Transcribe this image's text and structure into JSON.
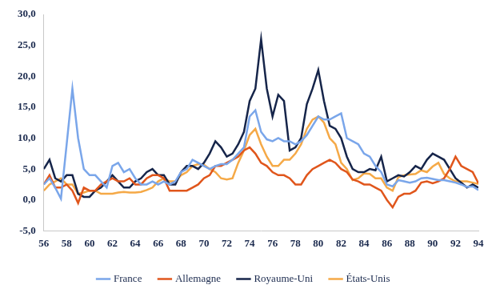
{
  "chart_data": {
    "type": "line",
    "x": [
      56,
      56.5,
      57,
      57.5,
      58,
      58.5,
      59,
      59.5,
      60,
      60.5,
      61,
      61.5,
      62,
      62.5,
      63,
      63.5,
      64,
      64.5,
      65,
      65.5,
      66,
      66.5,
      67,
      67.5,
      68,
      68.5,
      69,
      69.5,
      70,
      70.5,
      71,
      71.5,
      72,
      72.5,
      73,
      73.5,
      74,
      74.5,
      75,
      75.5,
      76,
      76.5,
      77,
      77.5,
      78,
      78.5,
      79,
      79.5,
      80,
      80.5,
      81,
      81.5,
      82,
      82.5,
      83,
      83.5,
      84,
      84.5,
      85,
      85.5,
      86,
      86.5,
      87,
      87.5,
      88,
      88.5,
      89,
      89.5,
      90,
      90.5,
      91,
      91.5,
      92,
      92.5,
      93,
      93.5,
      94
    ],
    "series": [
      {
        "name": "France",
        "color": "#7aa6ea",
        "values": [
          2.5,
          3.5,
          2,
          0.2,
          9,
          18,
          10,
          5,
          4,
          4,
          3,
          2,
          5.5,
          6,
          4.5,
          5,
          3.5,
          2.5,
          2.5,
          3,
          2.5,
          3,
          2.5,
          3,
          4.5,
          5,
          6.5,
          6,
          5.5,
          5,
          5.5,
          5.8,
          5.8,
          6.5,
          7.5,
          8.5,
          13.5,
          14.5,
          11,
          9.8,
          9.5,
          10,
          9.5,
          9.5,
          9,
          9.5,
          10.5,
          12,
          13.5,
          13,
          13,
          13.5,
          14,
          10,
          9.5,
          9,
          7.5,
          7,
          5.5,
          4.5,
          2.5,
          2.2,
          3.2,
          3,
          2.8,
          3,
          3.5,
          3.6,
          3.4,
          3.2,
          3.2,
          3,
          2.8,
          2.5,
          2.1,
          2.2,
          1.6
        ]
      },
      {
        "name": "Allemagne",
        "color": "#e0561c",
        "values": [
          2.5,
          4,
          2,
          2,
          2.5,
          1.5,
          -0.5,
          2,
          1.5,
          1.5,
          2.5,
          3,
          3.5,
          3,
          3,
          3.5,
          2.5,
          2.5,
          3.5,
          4,
          4,
          3.5,
          1.5,
          1.5,
          1.5,
          1.5,
          2,
          2.5,
          3.5,
          4,
          5.5,
          5.5,
          6,
          6.5,
          7,
          8,
          8.5,
          7.5,
          6,
          5.5,
          4.5,
          4,
          4,
          3.5,
          2.5,
          2.5,
          4,
          5,
          5.5,
          6,
          6.5,
          6,
          5,
          4.5,
          3.3,
          3,
          2.5,
          2.5,
          2,
          1.5,
          0,
          -1.2,
          0.5,
          1,
          1,
          1.5,
          2.8,
          3,
          2.7,
          3,
          3.5,
          5,
          7,
          5.5,
          5,
          4.5,
          2.7
        ]
      },
      {
        "name": "Royaume-Uni",
        "color": "#16254a",
        "values": [
          5,
          6.5,
          3.5,
          3,
          4,
          4,
          1,
          0.5,
          0.5,
          1.5,
          2,
          3,
          4,
          3,
          2,
          2,
          3,
          3.5,
          4.5,
          5,
          4,
          4,
          2.5,
          2.5,
          4.5,
          5.5,
          5.5,
          5,
          6,
          7.5,
          9.5,
          8.5,
          7,
          7.5,
          9,
          11,
          16,
          18,
          26,
          18,
          13.5,
          17,
          16,
          8,
          8.5,
          10,
          15.5,
          18,
          21,
          16,
          12,
          11.5,
          10,
          7,
          5,
          4.5,
          4.5,
          5,
          4.8,
          7,
          3,
          3.5,
          4,
          3.8,
          4.5,
          5.5,
          5,
          6.5,
          7.5,
          7,
          6.5,
          5,
          3.5,
          2.8,
          2,
          2.5,
          2
        ]
      },
      {
        "name": "États-Unis",
        "color": "#f5a947",
        "values": [
          1.5,
          2.5,
          3,
          3.5,
          2.5,
          2.5,
          1,
          1.2,
          1.5,
          1.5,
          1,
          1,
          1,
          1.2,
          1.3,
          1.2,
          1.2,
          1.3,
          1.6,
          2,
          3,
          3.5,
          3,
          3,
          4,
          4.5,
          5.5,
          5.8,
          5.7,
          5,
          4.5,
          3.5,
          3.3,
          3.5,
          6,
          8,
          10.5,
          11.5,
          9,
          7,
          5.5,
          5.5,
          6.5,
          6.5,
          7.5,
          9,
          11.5,
          13,
          13.5,
          12.5,
          10,
          9,
          6,
          5,
          3.2,
          3.5,
          4.3,
          4.2,
          3.5,
          3.5,
          2,
          1.5,
          3.7,
          4,
          4.1,
          4.2,
          4.8,
          4.5,
          5.4,
          6,
          4.2,
          3.5,
          3,
          3,
          3,
          2.8,
          2.6
        ]
      }
    ],
    "xlim": [
      56,
      94
    ],
    "xticks": [
      56,
      58,
      60,
      62,
      64,
      66,
      68,
      70,
      72,
      74,
      76,
      78,
      80,
      82,
      84,
      86,
      88,
      90,
      92,
      94
    ],
    "ylim": [
      -5,
      30
    ],
    "yticks": [
      {
        "value": -5,
        "label": "-5,0"
      },
      {
        "value": 0,
        "label": "0,0"
      },
      {
        "value": 5,
        "label": "5,0"
      },
      {
        "value": 10,
        "label": "10,0"
      },
      {
        "value": 15,
        "label": "15,0"
      },
      {
        "value": 20,
        "label": "20,0"
      },
      {
        "value": 25,
        "label": "25,0"
      },
      {
        "value": 30,
        "label": "30,0"
      }
    ],
    "grid": false,
    "legend": "bottom"
  }
}
